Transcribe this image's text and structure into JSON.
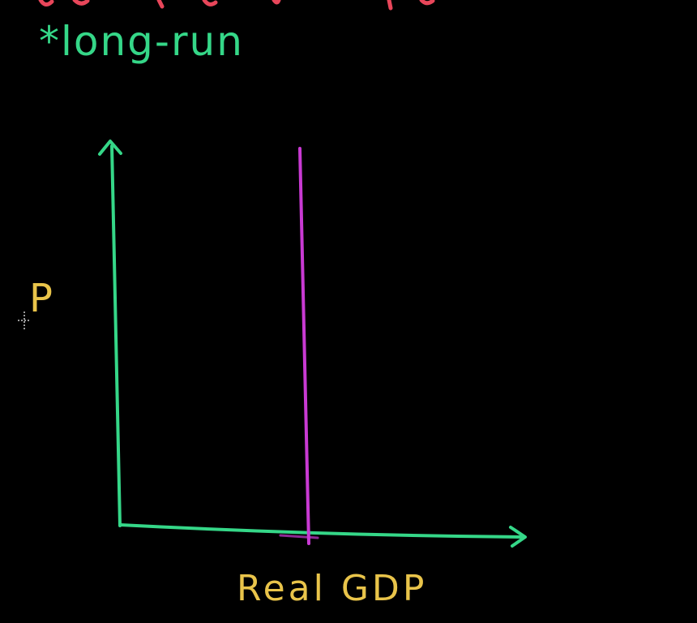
{
  "annotation": "*long-run",
  "y_axis_label": "P",
  "x_axis_label": "Real GDP",
  "colors": {
    "background": "#000000",
    "axes": "#35d788",
    "curve": "#c93ad3",
    "labels": "#e9c44a",
    "top_strokes": "#e8465a"
  },
  "icons": [
    "crosshair-cursor-icon"
  ]
}
